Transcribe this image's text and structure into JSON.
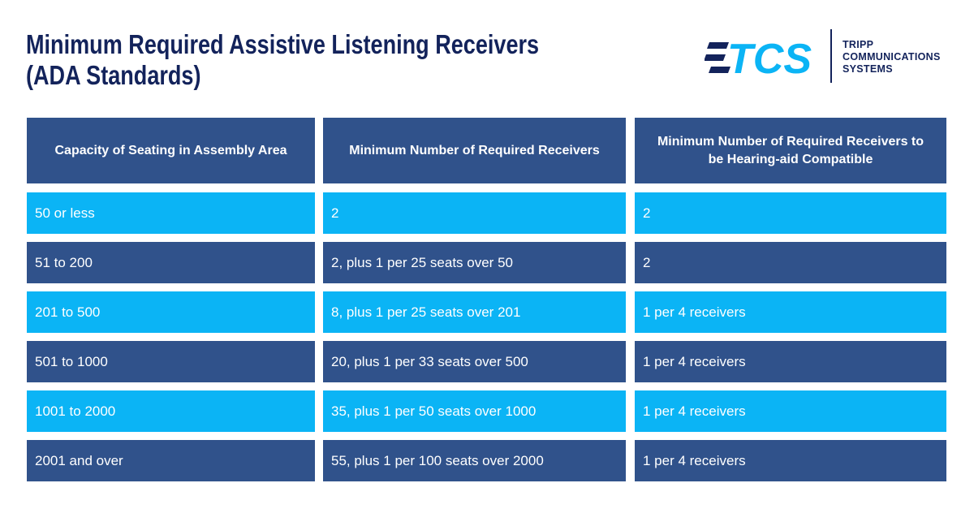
{
  "header": {
    "title_lines": [
      "Minimum Required Assistive Listening Receivers",
      "(ADA Standards)"
    ],
    "logo": {
      "mark": "TCS",
      "text_lines": [
        "TRIPP",
        "COMMUNICATIONS",
        "SYSTEMS"
      ]
    }
  },
  "table": {
    "columns": [
      "Capacity of Seating in Assembly Area",
      "Minimum Number of Required Receivers",
      "Minimum Number of Required Receivers to be Hearing-aid Compatible"
    ],
    "rows": [
      [
        "50 or less",
        "2",
        "2"
      ],
      [
        "51 to 200",
        "2, plus 1 per 25 seats over 50",
        "2"
      ],
      [
        "201 to 500",
        "8, plus 1 per 25 seats over 201",
        "1 per 4 receivers"
      ],
      [
        "501 to 1000",
        "20, plus 1 per 33 seats over 500",
        "1 per 4 receivers"
      ],
      [
        "1001 to 2000",
        "35, plus 1 per 50 seats over 1000",
        "1 per 4 receivers"
      ],
      [
        "2001 and over",
        "55, plus 1 per 100 seats over 2000",
        "1 per 4 receivers"
      ]
    ]
  }
}
